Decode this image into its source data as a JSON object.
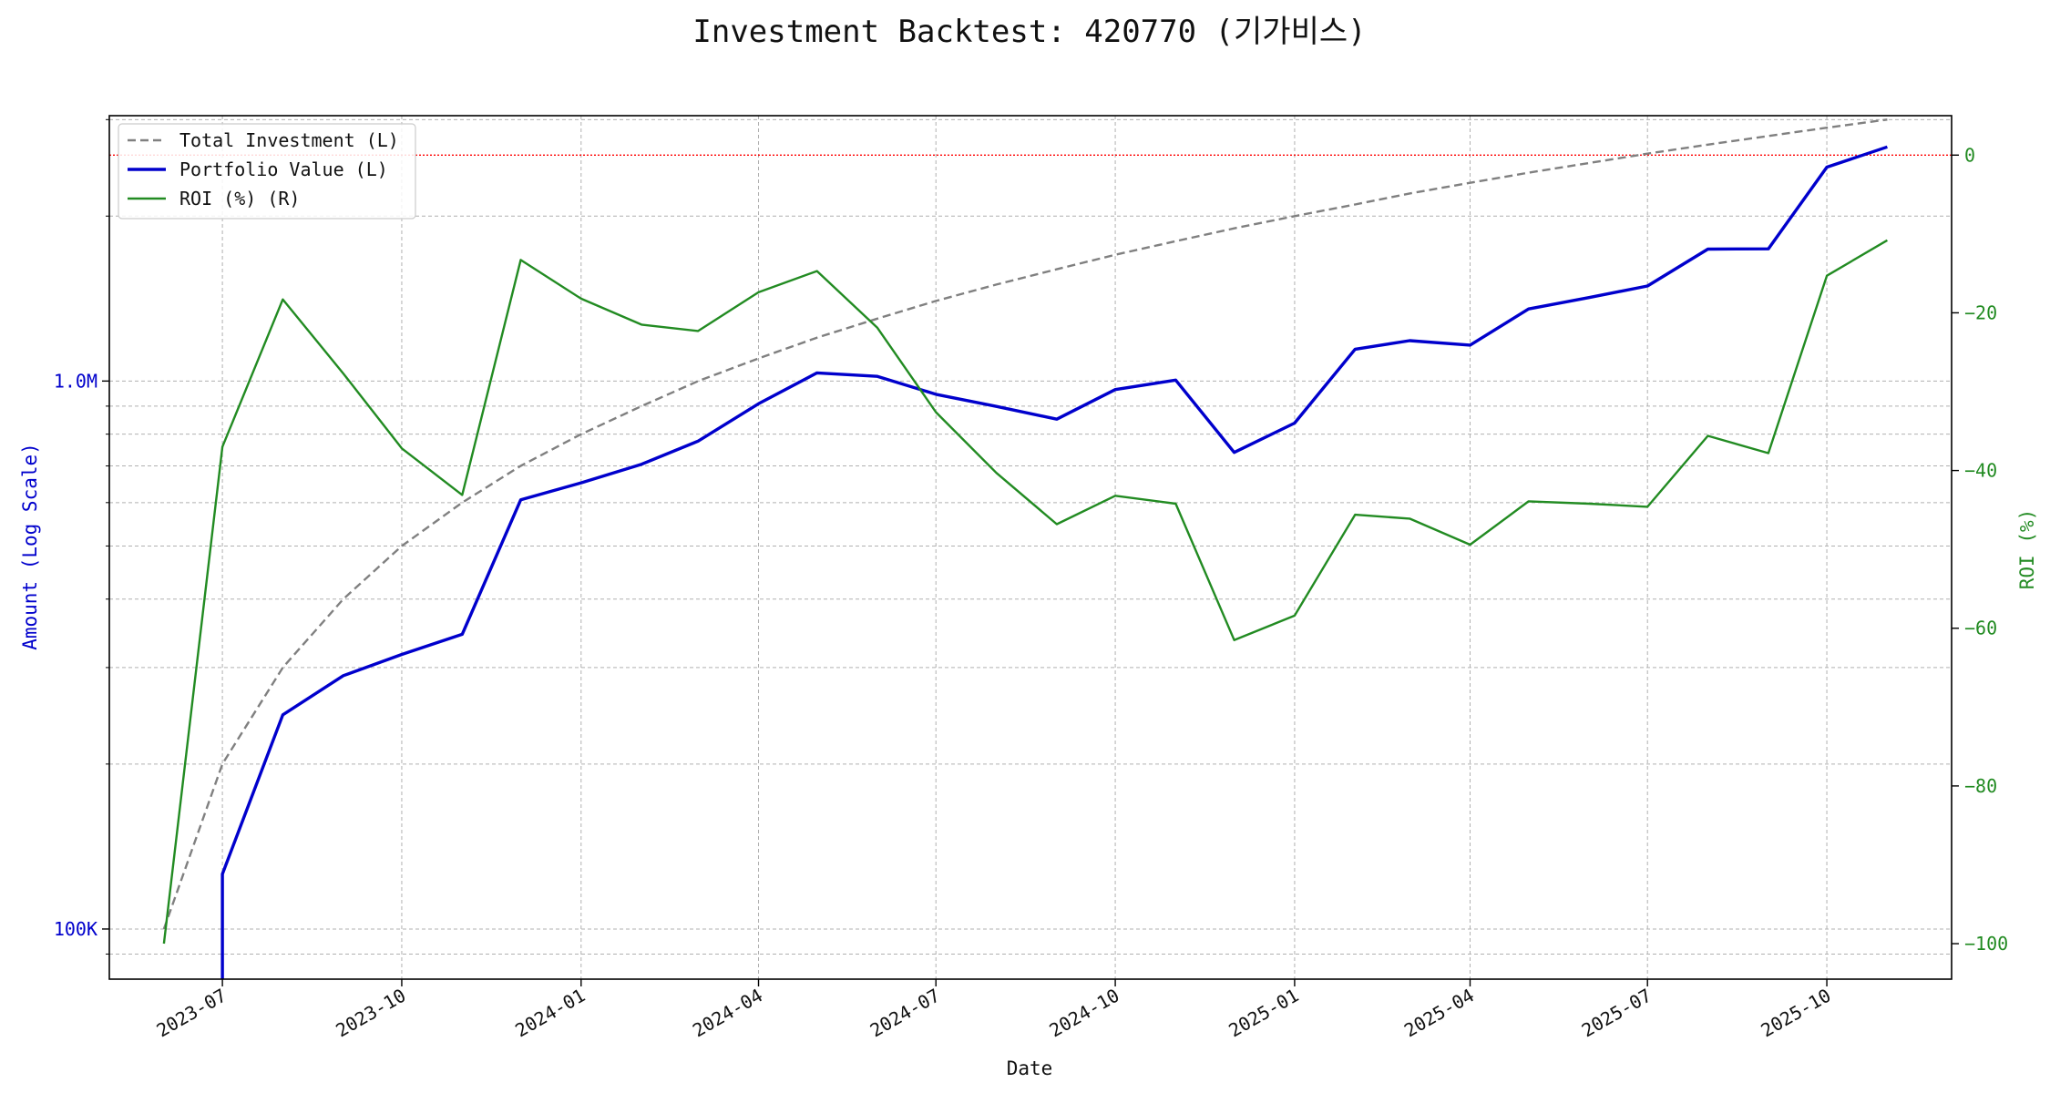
{
  "chart_data": {
    "type": "line",
    "title": "Investment Backtest: 420770 (기가비스)",
    "xlabel": "Date",
    "ylabel_left": "Amount (Log Scale)",
    "ylabel_right": "ROI (%)",
    "left_axis": {
      "scale": "log",
      "ylim": [
        81000,
        3050000
      ],
      "ticks": [
        {
          "value": 100000,
          "label": "100K"
        },
        {
          "value": 1000000,
          "label": "1.0M"
        }
      ],
      "color": "#0000cc"
    },
    "right_axis": {
      "ylim": [
        -104.5,
        5
      ],
      "ticks": [
        0,
        -20,
        -40,
        -60,
        -80,
        -100
      ],
      "color": "#228b22"
    },
    "x_axis": {
      "range": [
        "2023-05-04",
        "2025-12-04"
      ],
      "ticks": [
        "2023-07",
        "2023-10",
        "2024-01",
        "2024-04",
        "2024-07",
        "2024-10",
        "2025-01",
        "2025-04",
        "2025-07",
        "2025-10"
      ]
    },
    "zero_line": {
      "value": 0,
      "color": "#ff0000"
    },
    "grid": true,
    "legend_position": "top-left",
    "x": [
      "2023-06-01",
      "2023-07-01",
      "2023-08-01",
      "2023-09-01",
      "2023-10-01",
      "2023-11-01",
      "2023-12-01",
      "2024-01-01",
      "2024-02-01",
      "2024-03-01",
      "2024-04-01",
      "2024-05-01",
      "2024-06-01",
      "2024-07-01",
      "2024-08-01",
      "2024-09-01",
      "2024-10-01",
      "2024-11-01",
      "2024-12-01",
      "2025-01-01",
      "2025-02-01",
      "2025-03-01",
      "2025-04-01",
      "2025-05-01",
      "2025-06-01",
      "2025-07-01",
      "2025-08-01",
      "2025-09-01",
      "2025-10-01",
      "2025-11-01"
    ],
    "series": [
      {
        "name": "Total Investment (L)",
        "axis": "left",
        "style": "dashed",
        "color": "#808080",
        "values": [
          100000,
          200000,
          300000,
          400000,
          500000,
          600000,
          700000,
          800000,
          900000,
          1000000,
          1100000,
          1200000,
          1300000,
          1400000,
          1500000,
          1600000,
          1700000,
          1800000,
          1900000,
          2000000,
          2100000,
          2200000,
          2300000,
          2400000,
          2500000,
          2600000,
          2700000,
          2800000,
          2900000,
          3000000
        ]
      },
      {
        "name": "Portfolio Value (L)",
        "axis": "left",
        "style": "solid",
        "color": "#0000cc",
        "values": [
          null,
          126000,
          246000,
          290000,
          317000,
          345000,
          607000,
          652000,
          705000,
          777000,
          909000,
          1035000,
          1020000,
          946000,
          899000,
          852000,
          965000,
          1004000,
          741000,
          838000,
          1143000,
          1185000,
          1163000,
          1354000,
          1420000,
          1491000,
          1741000,
          1743000,
          2457000,
          2675000
        ]
      },
      {
        "name": "ROI (%) (R)",
        "axis": "right",
        "style": "solid",
        "color": "#228b22",
        "values": [
          -100,
          -37,
          -18.3,
          -27.7,
          -37.2,
          -43.1,
          -13.3,
          -18.2,
          -21.5,
          -22.3,
          -17.4,
          -14.7,
          -21.9,
          -32.6,
          -40.3,
          -46.8,
          -43.2,
          -44.2,
          -61.5,
          -58.4,
          -45.6,
          -46.1,
          -49.4,
          -43.9,
          -44.2,
          -44.6,
          -35.6,
          -37.8,
          -15.3,
          -10.8
        ]
      }
    ]
  }
}
